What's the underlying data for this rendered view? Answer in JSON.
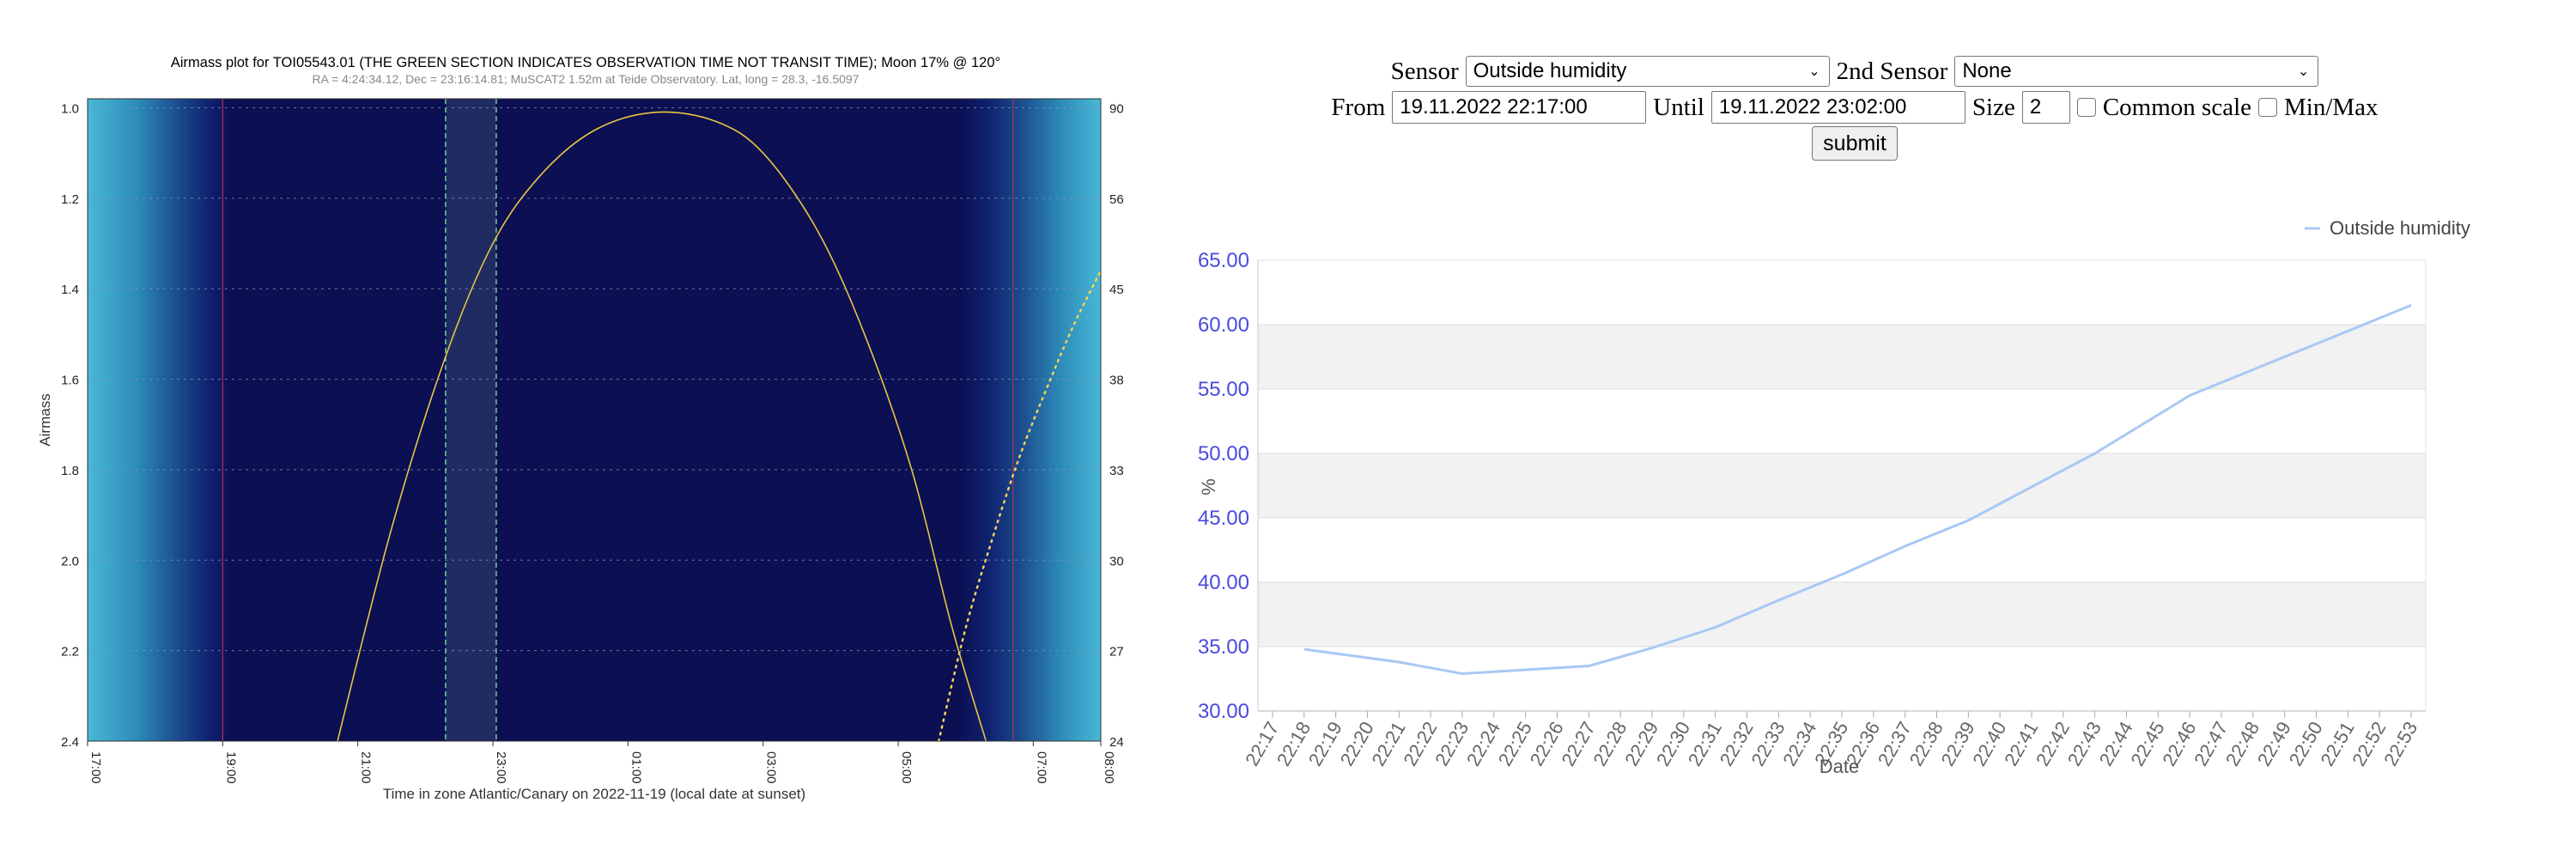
{
  "left_chart": {
    "title": "Airmass plot for TOI05543.01 (THE GREEN SECTION INDICATES OBSERVATION TIME NOT TRANSIT TIME); Moon 17% @ 120°",
    "subtitle": "RA = 4:24:34.12, Dec = 23:16:14.81; MuSCAT2 1.52m at Teide Observatory. Lat, long = 28.3, -16.5097",
    "ylabel": "Airmass",
    "xlabel": "Time in zone Atlantic/Canary on 2022-11-19 (local date at sunset)"
  },
  "form": {
    "sensor_label": "Sensor",
    "sensor_value": "Outside humidity",
    "sensor2_label": "2nd Sensor",
    "sensor2_value": "None",
    "from_label": "From",
    "from_value": "19.11.2022 22:17:00",
    "until_label": "Until",
    "until_value": "19.11.2022 23:02:00",
    "size_label": "Size",
    "size_value": "2",
    "common_scale_label": "Common scale",
    "minmax_label": "Min/Max",
    "submit_label": "submit"
  },
  "chart_data": [
    {
      "type": "line",
      "title": "Airmass plot for TOI05543.01 (THE GREEN SECTION INDICATES OBSERVATION TIME NOT TRANSIT TIME); Moon 17% @ 120°",
      "xlabel": "Time in zone Atlantic/Canary on 2022-11-19 (local date at sunset)",
      "ylabel": "Airmass",
      "x_ticks": [
        "17:00",
        "19:00",
        "21:00",
        "23:00",
        "01:00",
        "03:00",
        "05:00",
        "07:00",
        "08:00"
      ],
      "y_ticks": [
        "1.0",
        "1.2",
        "1.4",
        "1.6",
        "1.8",
        "2.0",
        "2.2",
        "2.4"
      ],
      "y2_ticks": [
        "90",
        "56",
        "45",
        "38",
        "33",
        "30",
        "27",
        "24"
      ],
      "xlim_hours": [
        17,
        32
      ],
      "ylim": [
        0.98,
        2.4
      ],
      "grid": true,
      "series": [
        {
          "x_hours": [
            20.7,
            21.5,
            22.3,
            23.0,
            23.7,
            24.5,
            25.4,
            26.3,
            27.0,
            27.8,
            28.5,
            29.2,
            29.8,
            30.3
          ],
          "values": [
            2.4,
            1.93,
            1.55,
            1.3,
            1.15,
            1.05,
            1.01,
            1.03,
            1.1,
            1.27,
            1.5,
            1.8,
            2.15,
            2.4
          ]
        },
        {
          "x_hours": [
            29.6,
            30.0,
            30.4,
            30.8,
            31.2,
            31.6,
            32.0
          ],
          "values": [
            2.4,
            2.15,
            1.95,
            1.77,
            1.62,
            1.48,
            1.36
          ]
        }
      ],
      "observation_window_hours": [
        22.3,
        23.05
      ]
    },
    {
      "type": "line",
      "xlabel": "Date",
      "ylabel": "%",
      "ylim": [
        30,
        65
      ],
      "y_ticks": [
        "30.00",
        "35.00",
        "40.00",
        "45.00",
        "50.00",
        "55.00",
        "60.00",
        "65.00"
      ],
      "legend_placement": "top-right",
      "categories": [
        "22:17",
        "22:18",
        "22:19",
        "22:20",
        "22:21",
        "22:22",
        "22:23",
        "22:24",
        "22:25",
        "22:26",
        "22:27",
        "22:28",
        "22:29",
        "22:30",
        "22:31",
        "22:32",
        "22:33",
        "22:34",
        "22:35",
        "22:36",
        "22:37",
        "22:38",
        "22:39",
        "22:40",
        "22:41",
        "22:42",
        "22:43",
        "22:44",
        "22:45",
        "22:46",
        "22:47",
        "22:48",
        "22:49",
        "22:50",
        "22:51",
        "22:52",
        "22:53"
      ],
      "series": [
        {
          "name": "Outside humidity",
          "x": [
            1,
            4,
            6,
            8,
            10,
            12,
            14,
            16,
            18,
            20,
            22,
            24,
            26,
            27,
            29,
            31,
            33,
            35,
            36
          ],
          "values": [
            34.8,
            33.8,
            32.9,
            33.2,
            33.5,
            34.9,
            36.5,
            38.6,
            40.6,
            42.8,
            44.8,
            47.4,
            50.0,
            51.5,
            54.5,
            56.5,
            58.5,
            60.5,
            61.5
          ]
        }
      ]
    }
  ]
}
